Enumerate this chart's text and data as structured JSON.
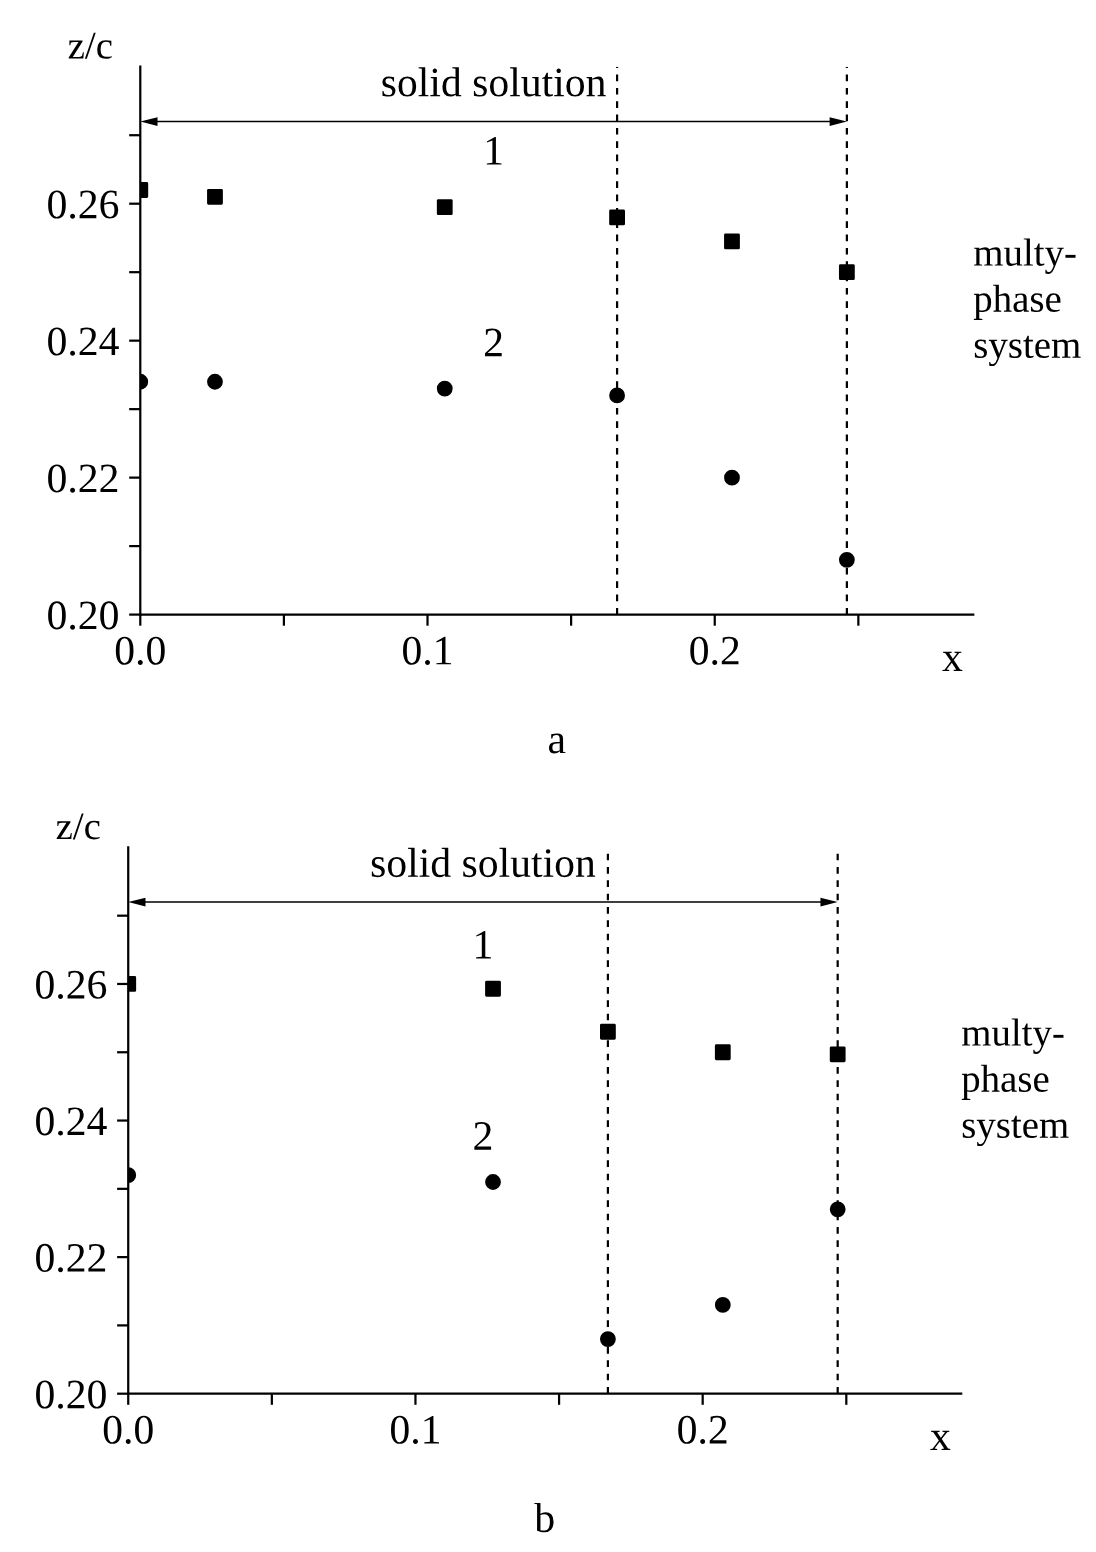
{
  "chart_data": [
    {
      "type": "scatter",
      "ylabel": "z/c",
      "xlabel": "x",
      "xlim": [
        0,
        0.29
      ],
      "ylim": [
        0.2,
        0.28
      ],
      "xticks": [
        {
          "value": 0,
          "label": "0.0"
        },
        {
          "value": 0.05,
          "label": null
        },
        {
          "value": 0.1,
          "label": "0.1"
        },
        {
          "value": 0.15,
          "label": null
        },
        {
          "value": 0.2,
          "label": "0.2"
        },
        {
          "value": 0.25,
          "label": null
        }
      ],
      "yticks": [
        {
          "value": 0.2,
          "label": "0.20"
        },
        {
          "value": 0.21,
          "label": null
        },
        {
          "value": 0.22,
          "label": "0.22"
        },
        {
          "value": 0.23,
          "label": null
        },
        {
          "value": 0.24,
          "label": "0.24"
        },
        {
          "value": 0.25,
          "label": null
        },
        {
          "value": 0.26,
          "label": "0.26"
        },
        {
          "value": 0.27,
          "label": null
        }
      ],
      "series": [
        {
          "name": "1",
          "color": "#000000",
          "marker": "square",
          "x": [
            0,
            0.026,
            0.106,
            0.166,
            0.206,
            0.246
          ],
          "values": [
            0.262,
            0.261,
            0.2595,
            0.258,
            0.2545,
            0.25
          ]
        },
        {
          "name": "2",
          "color": "#000000",
          "marker": "circle",
          "x": [
            0,
            0.026,
            0.106,
            0.166,
            0.206,
            0.246
          ],
          "values": [
            0.234,
            0.234,
            0.233,
            0.232,
            0.22,
            0.208
          ]
        }
      ],
      "ref_lines": [
        {
          "axis": "x",
          "value": 0.166,
          "line_style": "dashed",
          "color": "#000000"
        },
        {
          "axis": "x",
          "value": 0.246,
          "line_style": "dashed",
          "color": "#000000"
        }
      ],
      "annotations": [
        "solid solution",
        "multy-\nphase\nsystem",
        "a"
      ],
      "grid": false,
      "legend": false
    },
    {
      "type": "scatter",
      "ylabel": "z/c",
      "xlabel": "x",
      "xlim": [
        0,
        0.29
      ],
      "ylim": [
        0.2,
        0.28
      ],
      "xticks": [
        {
          "value": 0,
          "label": "0.0"
        },
        {
          "value": 0.05,
          "label": null
        },
        {
          "value": 0.1,
          "label": "0.1"
        },
        {
          "value": 0.15,
          "label": null
        },
        {
          "value": 0.2,
          "label": "0.2"
        },
        {
          "value": 0.25,
          "label": null
        }
      ],
      "yticks": [
        {
          "value": 0.2,
          "label": "0.20"
        },
        {
          "value": 0.21,
          "label": null
        },
        {
          "value": 0.22,
          "label": "0.22"
        },
        {
          "value": 0.23,
          "label": null
        },
        {
          "value": 0.24,
          "label": "0.24"
        },
        {
          "value": 0.25,
          "label": null
        },
        {
          "value": 0.26,
          "label": "0.26"
        },
        {
          "value": 0.27,
          "label": null
        }
      ],
      "series": [
        {
          "name": "1",
          "color": "#000000",
          "marker": "square",
          "x": [
            0,
            0.127,
            0.167,
            0.207,
            0.247
          ],
          "values": [
            0.26,
            0.2593,
            0.253,
            0.25,
            0.2497
          ]
        },
        {
          "name": "2",
          "color": "#000000",
          "marker": "circle",
          "x": [
            0,
            0.127,
            0.167,
            0.207,
            0.247
          ],
          "values": [
            0.232,
            0.231,
            0.208,
            0.213,
            0.227
          ]
        }
      ],
      "ref_lines": [
        {
          "axis": "x",
          "value": 0.167,
          "line_style": "dashed",
          "color": "#000000"
        },
        {
          "axis": "x",
          "value": 0.247,
          "line_style": "dashed",
          "color": "#000000"
        }
      ],
      "annotations": [
        "solid solution",
        "multy-\nphase\nsystem",
        "b"
      ],
      "grid": false,
      "legend": false
    }
  ]
}
